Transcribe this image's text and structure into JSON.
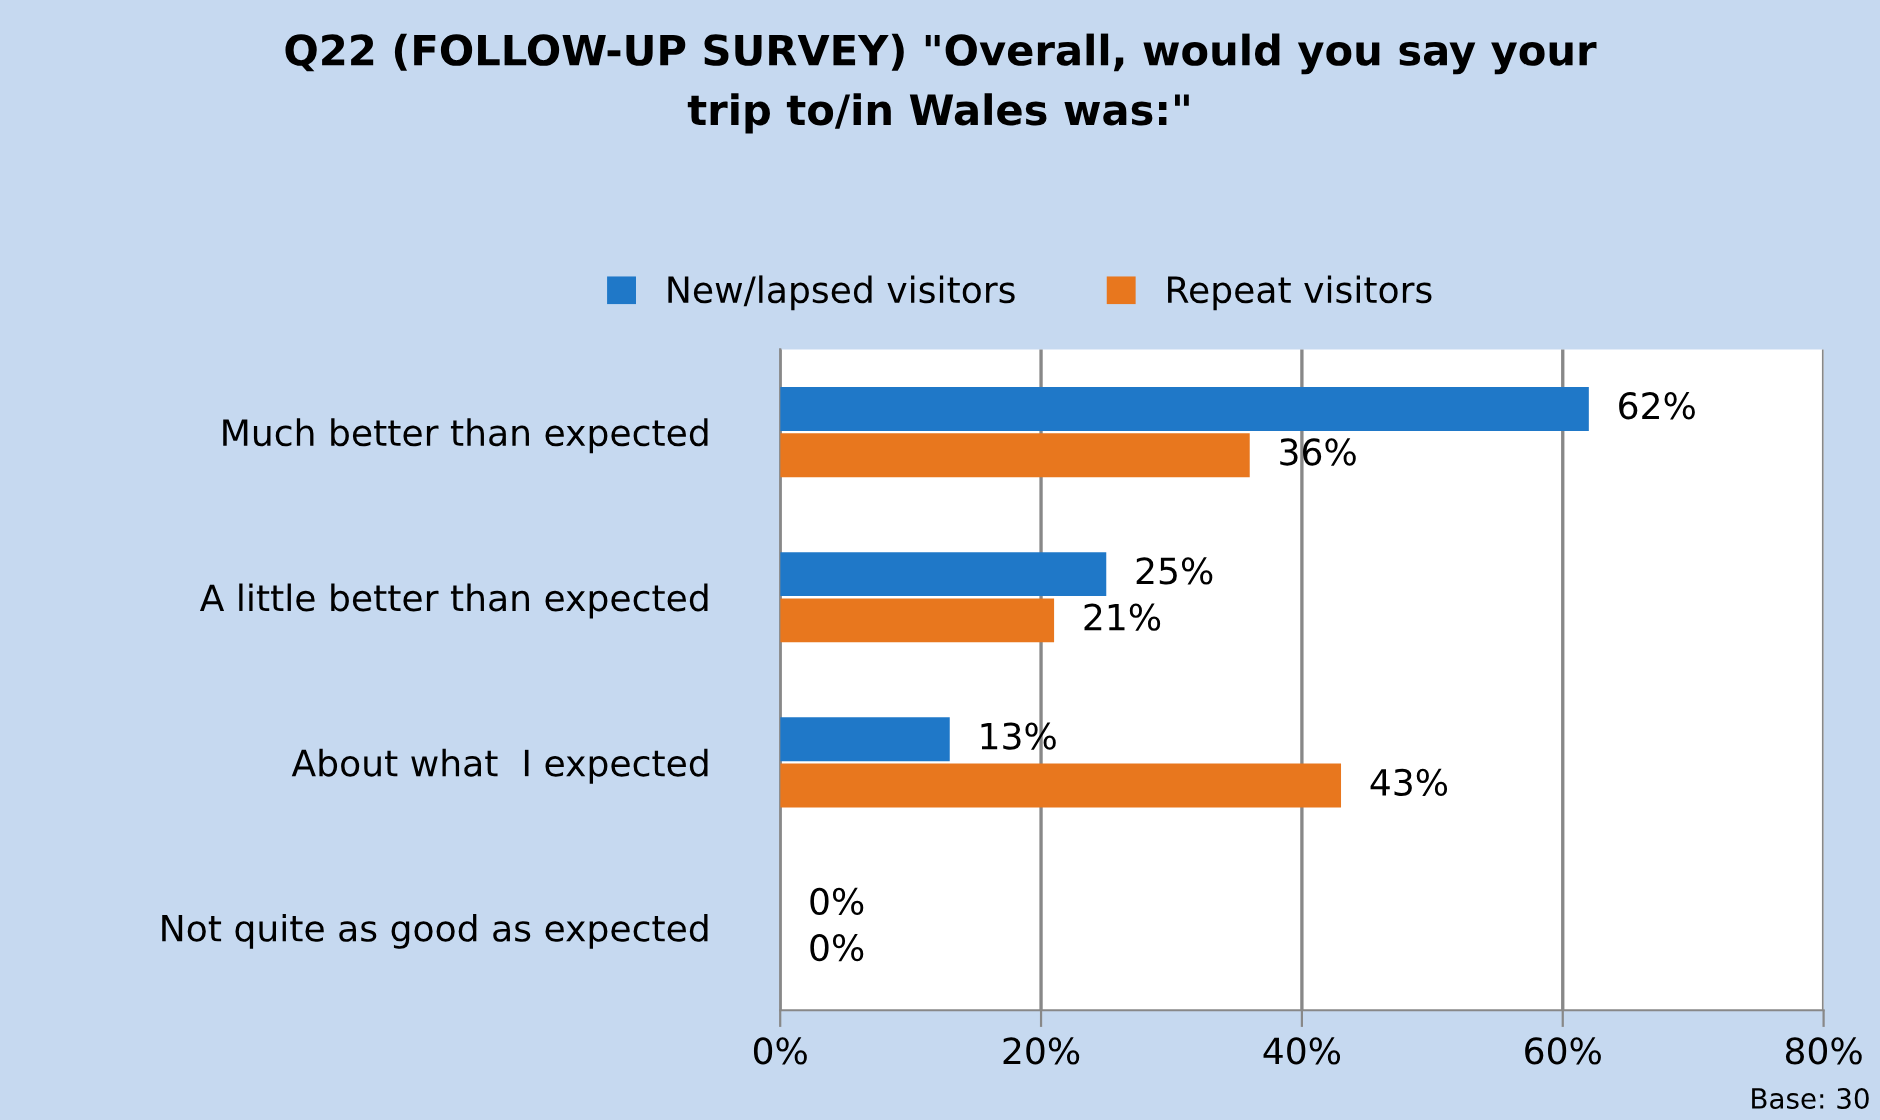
{
  "chart_data": {
    "type": "bar",
    "orientation": "horizontal",
    "title": "Q22 (FOLLOW-UP SURVEY) \"Overall, would you say your\ntrip to/in Wales was:\"",
    "categories": [
      "Much better than expected",
      "A little better than expected",
      "About what  I expected",
      "Not quite as good as expected"
    ],
    "series": [
      {
        "name": "New/lapsed visitors",
        "color": "#1f78c8",
        "values": [
          62,
          25,
          13,
          0
        ],
        "value_labels": [
          "62%",
          "25%",
          "13%",
          "0%"
        ]
      },
      {
        "name": "Repeat visitors",
        "color": "#e8771e",
        "values": [
          36,
          21,
          43,
          0
        ],
        "value_labels": [
          "36%",
          "21%",
          "43%",
          "0%"
        ]
      }
    ],
    "xlim": [
      0,
      80
    ],
    "xticks": [
      {
        "value": 0,
        "label": "0%"
      },
      {
        "value": 20,
        "label": "20%"
      },
      {
        "value": 40,
        "label": "40%"
      },
      {
        "value": 60,
        "label": "60%"
      },
      {
        "value": 80,
        "label": "80%"
      }
    ],
    "grid": "x",
    "legend": "top",
    "annotations": [
      "Base: 30"
    ]
  }
}
